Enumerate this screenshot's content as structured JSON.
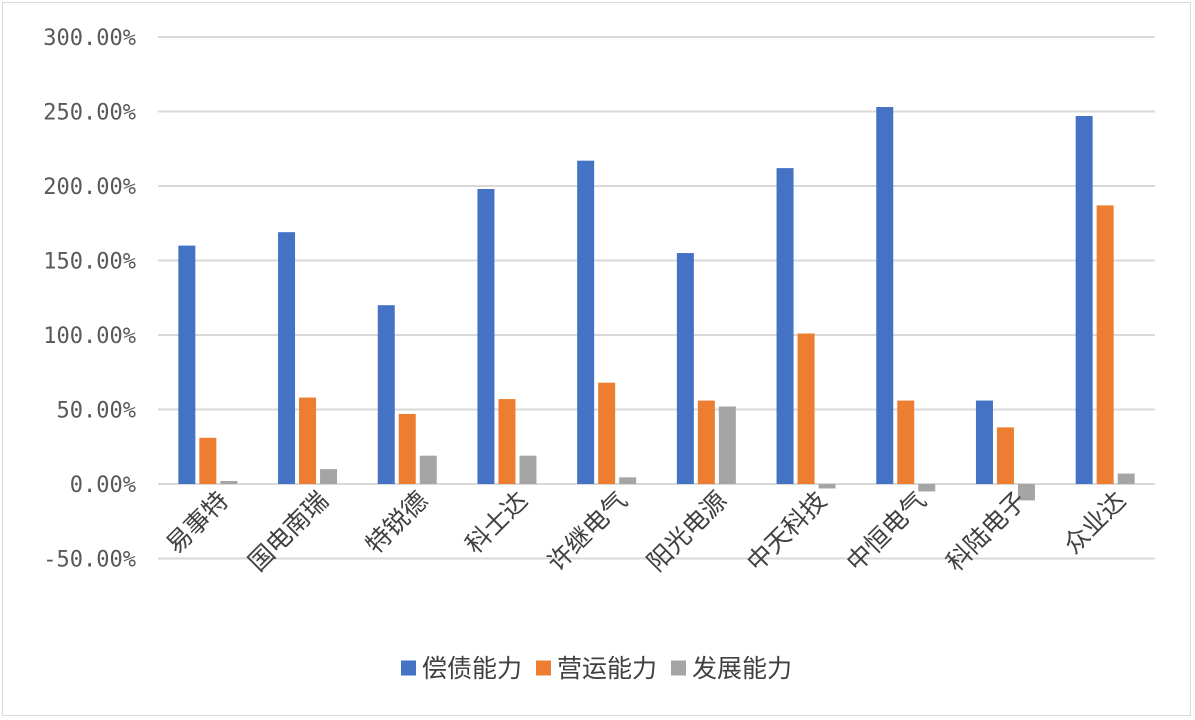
{
  "chart_data": {
    "type": "bar",
    "categories": [
      "易事特",
      "国电南瑞",
      "特锐德",
      "科士达",
      "许继电气",
      "阳光电源",
      "中天科技",
      "中恒电气",
      "科陆电子",
      "众业达"
    ],
    "series": [
      {
        "name": "偿债能力",
        "color": "#4472c4",
        "values": [
          160,
          169,
          120,
          198,
          217,
          155,
          212,
          253,
          56,
          247
        ]
      },
      {
        "name": "营运能力",
        "color": "#ed7d31",
        "values": [
          31,
          58,
          47,
          57,
          68,
          56,
          101,
          56,
          38,
          187
        ]
      },
      {
        "name": "发展能力",
        "color": "#a5a5a5",
        "values": [
          2,
          10,
          19,
          19,
          4.5,
          52,
          -3,
          -5,
          -11,
          7
        ]
      }
    ],
    "yticks": [
      "300.00%",
      "250.00%",
      "200.00%",
      "150.00%",
      "100.00%",
      "50.00%",
      "0.00%",
      "-50.00%"
    ],
    "ylim": [
      -50,
      300
    ],
    "grid": true,
    "legend_position": "bottom"
  }
}
